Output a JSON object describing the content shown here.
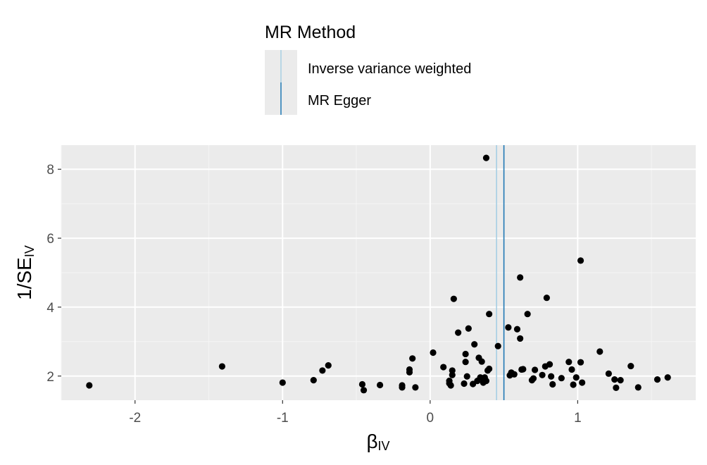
{
  "chart_data": {
    "type": "scatter",
    "title": "",
    "xlabel": "β",
    "xlabel_sub": "IV",
    "ylabel_main": "1/SE",
    "ylabel_sub": "IV",
    "xlim": [
      -2.5,
      1.8
    ],
    "ylim": [
      1.3,
      8.7
    ],
    "x_ticks": [
      -2,
      -1,
      0,
      1
    ],
    "x_tick_labels": [
      "-2",
      "-1",
      "0",
      "1"
    ],
    "y_ticks": [
      2,
      4,
      6,
      8
    ],
    "y_tick_labels": [
      "2",
      "4",
      "6",
      "8"
    ],
    "grid": true,
    "legend": {
      "title": "MR Method",
      "position": "top",
      "entries": [
        {
          "label": "Inverse variance weighted",
          "color": "#a6cee3"
        },
        {
          "label": "MR Egger",
          "color": "#1f78b4"
        }
      ]
    },
    "lines": [
      {
        "method": "Inverse variance weighted",
        "x": 0.45,
        "color": "#a6cee3"
      },
      {
        "method": "MR Egger",
        "x": 0.5,
        "color": "#1f78b4"
      }
    ],
    "points": [
      [
        -2.31,
        1.73
      ],
      [
        -1.41,
        2.28
      ],
      [
        -1.0,
        1.81
      ],
      [
        -0.79,
        1.88
      ],
      [
        -0.73,
        2.16
      ],
      [
        -0.69,
        2.31
      ],
      [
        -0.46,
        1.76
      ],
      [
        -0.45,
        1.59
      ],
      [
        -0.34,
        1.74
      ],
      [
        -0.19,
        1.67
      ],
      [
        -0.19,
        1.73
      ],
      [
        -0.14,
        2.11
      ],
      [
        -0.14,
        2.19
      ],
      [
        -0.12,
        2.51
      ],
      [
        -0.1,
        1.67
      ],
      [
        0.02,
        2.68
      ],
      [
        0.09,
        2.26
      ],
      [
        0.13,
        1.79
      ],
      [
        0.13,
        1.86
      ],
      [
        0.14,
        1.73
      ],
      [
        0.15,
        2.03
      ],
      [
        0.15,
        2.16
      ],
      [
        0.16,
        4.24
      ],
      [
        0.19,
        3.26
      ],
      [
        0.23,
        1.78
      ],
      [
        0.24,
        2.41
      ],
      [
        0.24,
        2.64
      ],
      [
        0.25,
        1.99
      ],
      [
        0.26,
        3.38
      ],
      [
        0.29,
        1.77
      ],
      [
        0.3,
        2.92
      ],
      [
        0.32,
        1.86
      ],
      [
        0.33,
        2.53
      ],
      [
        0.34,
        1.96
      ],
      [
        0.35,
        2.42
      ],
      [
        0.36,
        1.81
      ],
      [
        0.37,
        1.96
      ],
      [
        0.38,
        1.86
      ],
      [
        0.38,
        8.33
      ],
      [
        0.39,
        2.16
      ],
      [
        0.4,
        2.21
      ],
      [
        0.4,
        3.8
      ],
      [
        0.46,
        2.87
      ],
      [
        0.53,
        3.41
      ],
      [
        0.54,
        2.02
      ],
      [
        0.55,
        2.1
      ],
      [
        0.57,
        2.05
      ],
      [
        0.59,
        3.36
      ],
      [
        0.61,
        4.86
      ],
      [
        0.61,
        3.09
      ],
      [
        0.62,
        2.19
      ],
      [
        0.63,
        2.2
      ],
      [
        0.66,
        3.8
      ],
      [
        0.69,
        1.88
      ],
      [
        0.7,
        1.93
      ],
      [
        0.71,
        2.18
      ],
      [
        0.76,
        2.03
      ],
      [
        0.78,
        2.28
      ],
      [
        0.79,
        4.27
      ],
      [
        0.81,
        2.34
      ],
      [
        0.82,
        1.99
      ],
      [
        0.83,
        1.76
      ],
      [
        0.89,
        1.94
      ],
      [
        0.94,
        2.41
      ],
      [
        0.96,
        2.19
      ],
      [
        0.97,
        1.75
      ],
      [
        0.99,
        1.96
      ],
      [
        1.02,
        5.35
      ],
      [
        1.02,
        2.4
      ],
      [
        1.03,
        1.81
      ],
      [
        1.15,
        2.71
      ],
      [
        1.21,
        2.07
      ],
      [
        1.25,
        1.9
      ],
      [
        1.26,
        1.66
      ],
      [
        1.29,
        1.88
      ],
      [
        1.36,
        2.29
      ],
      [
        1.41,
        1.67
      ],
      [
        1.54,
        1.9
      ],
      [
        1.61,
        1.96
      ]
    ]
  }
}
